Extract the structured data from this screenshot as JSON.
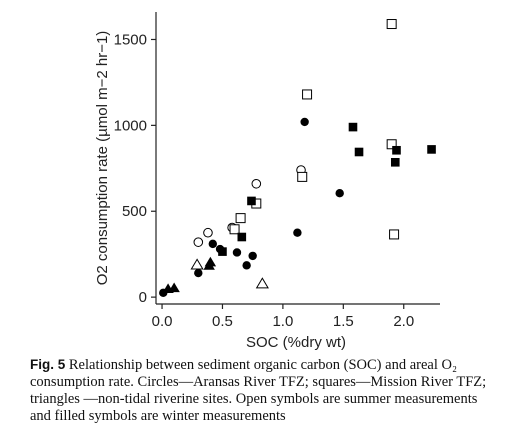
{
  "chart_data": {
    "type": "scatter",
    "xlabel": "SOC (%dry wt)",
    "ylabel": "O2 consumption rate (µmol m−2 hr−1)",
    "xlim": [
      -0.05,
      2.3
    ],
    "ylim": [
      -40,
      1660
    ],
    "x_ticks": [
      "0.0",
      "0.5",
      "1.0",
      "1.5",
      "2.0"
    ],
    "y_ticks": [
      "0",
      "500",
      "1000",
      "1500"
    ],
    "grid": false,
    "series": [
      {
        "marker": "circle",
        "fill": "open",
        "points": [
          [
            0.3,
            320
          ],
          [
            0.38,
            375
          ],
          [
            0.58,
            405
          ],
          [
            0.78,
            660
          ],
          [
            1.15,
            740
          ]
        ]
      },
      {
        "marker": "circle",
        "fill": "filled",
        "points": [
          [
            0.01,
            25
          ],
          [
            0.3,
            140
          ],
          [
            0.42,
            310
          ],
          [
            0.48,
            280
          ],
          [
            0.62,
            260
          ],
          [
            0.7,
            185
          ],
          [
            0.75,
            240
          ],
          [
            1.12,
            375
          ],
          [
            1.18,
            1020
          ],
          [
            1.47,
            605
          ]
        ]
      },
      {
        "marker": "square",
        "fill": "open",
        "points": [
          [
            0.6,
            395
          ],
          [
            0.65,
            460
          ],
          [
            0.78,
            545
          ],
          [
            1.16,
            700
          ],
          [
            1.2,
            1180
          ],
          [
            1.9,
            1590
          ],
          [
            1.9,
            890
          ],
          [
            1.92,
            365
          ]
        ]
      },
      {
        "marker": "square",
        "fill": "filled",
        "points": [
          [
            0.5,
            265
          ],
          [
            0.66,
            350
          ],
          [
            0.74,
            560
          ],
          [
            1.58,
            990
          ],
          [
            1.63,
            845
          ],
          [
            1.93,
            785
          ],
          [
            1.94,
            855
          ],
          [
            2.23,
            860
          ]
        ]
      },
      {
        "marker": "triangle",
        "fill": "open",
        "points": [
          [
            0.29,
            185
          ],
          [
            0.83,
            75
          ]
        ]
      },
      {
        "marker": "triangle",
        "fill": "filled",
        "points": [
          [
            0.05,
            45
          ],
          [
            0.1,
            50
          ],
          [
            0.39,
            180
          ],
          [
            0.4,
            200
          ]
        ]
      }
    ]
  },
  "caption": {
    "label": "Fig. 5",
    "text": "Relationship between sediment organic carbon (SOC) and areal O₂ consumption rate. Circles—Aransas River TFZ; squares—Mission River TFZ; triangles —non-tidal riverine sites. Open symbols are summer measurements and filled symbols are winter measurements"
  }
}
